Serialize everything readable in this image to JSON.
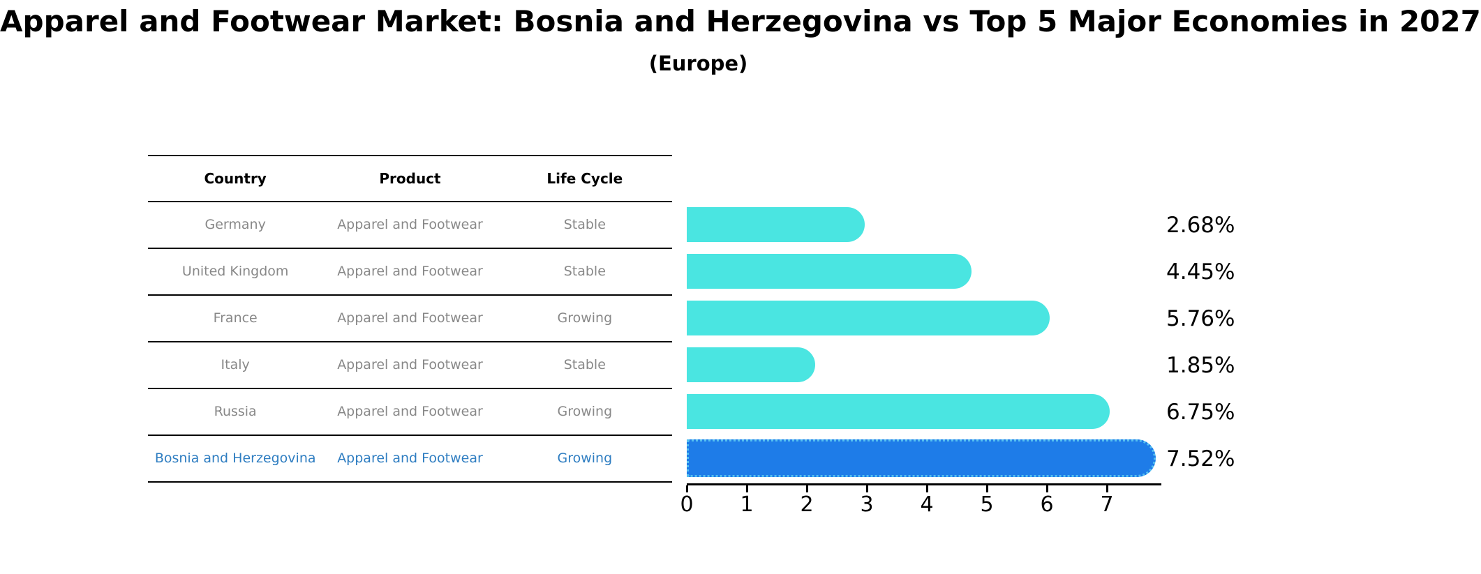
{
  "title": "Apparel and Footwear Market: Bosnia and Herzegovina vs Top 5 Major Economies in 2027",
  "subtitle": "(Europe)",
  "table": {
    "headers": [
      "Country",
      "Product",
      "Life Cycle"
    ],
    "rows": [
      {
        "country": "Germany",
        "product": "Apparel and Footwear",
        "life_cycle": "Stable",
        "highlighted": false
      },
      {
        "country": "United Kingdom",
        "product": "Apparel and Footwear",
        "life_cycle": "Stable",
        "highlighted": false
      },
      {
        "country": "France",
        "product": "Apparel and Footwear",
        "life_cycle": "Growing",
        "highlighted": false
      },
      {
        "country": "Italy",
        "product": "Apparel and Footwear",
        "life_cycle": "Stable",
        "highlighted": false
      },
      {
        "country": "Russia",
        "product": "Apparel and Footwear",
        "life_cycle": "Growing",
        "highlighted": false
      },
      {
        "country": "Bosnia and Herzegovina",
        "product": "Apparel and Footwear",
        "life_cycle": "Growing",
        "highlighted": true
      }
    ]
  },
  "chart_data": {
    "type": "bar",
    "orientation": "horizontal",
    "title": "Apparel and Footwear Market: Bosnia and Herzegovina vs Top 5 Major Economies in 2027",
    "subtitle": "(Europe)",
    "categories": [
      "Germany",
      "United Kingdom",
      "France",
      "Italy",
      "Russia",
      "Bosnia and Herzegovina"
    ],
    "values": [
      2.68,
      4.45,
      5.76,
      1.85,
      6.75,
      7.52
    ],
    "value_labels": [
      "2.68%",
      "4.45%",
      "5.76%",
      "1.85%",
      "6.75%",
      "7.52%"
    ],
    "unit": "%",
    "x_ticks": [
      0,
      1,
      2,
      3,
      4,
      5,
      6,
      7
    ],
    "xlim": [
      0,
      7.9
    ],
    "grid": false,
    "legend": "none",
    "bar_color": "#4ae5e1",
    "highlight_color": "#1e7ce8",
    "highlight_border_color": "#55c0f0",
    "highlight_text_color": "#2e7dc1",
    "highlight_index": 5
  }
}
